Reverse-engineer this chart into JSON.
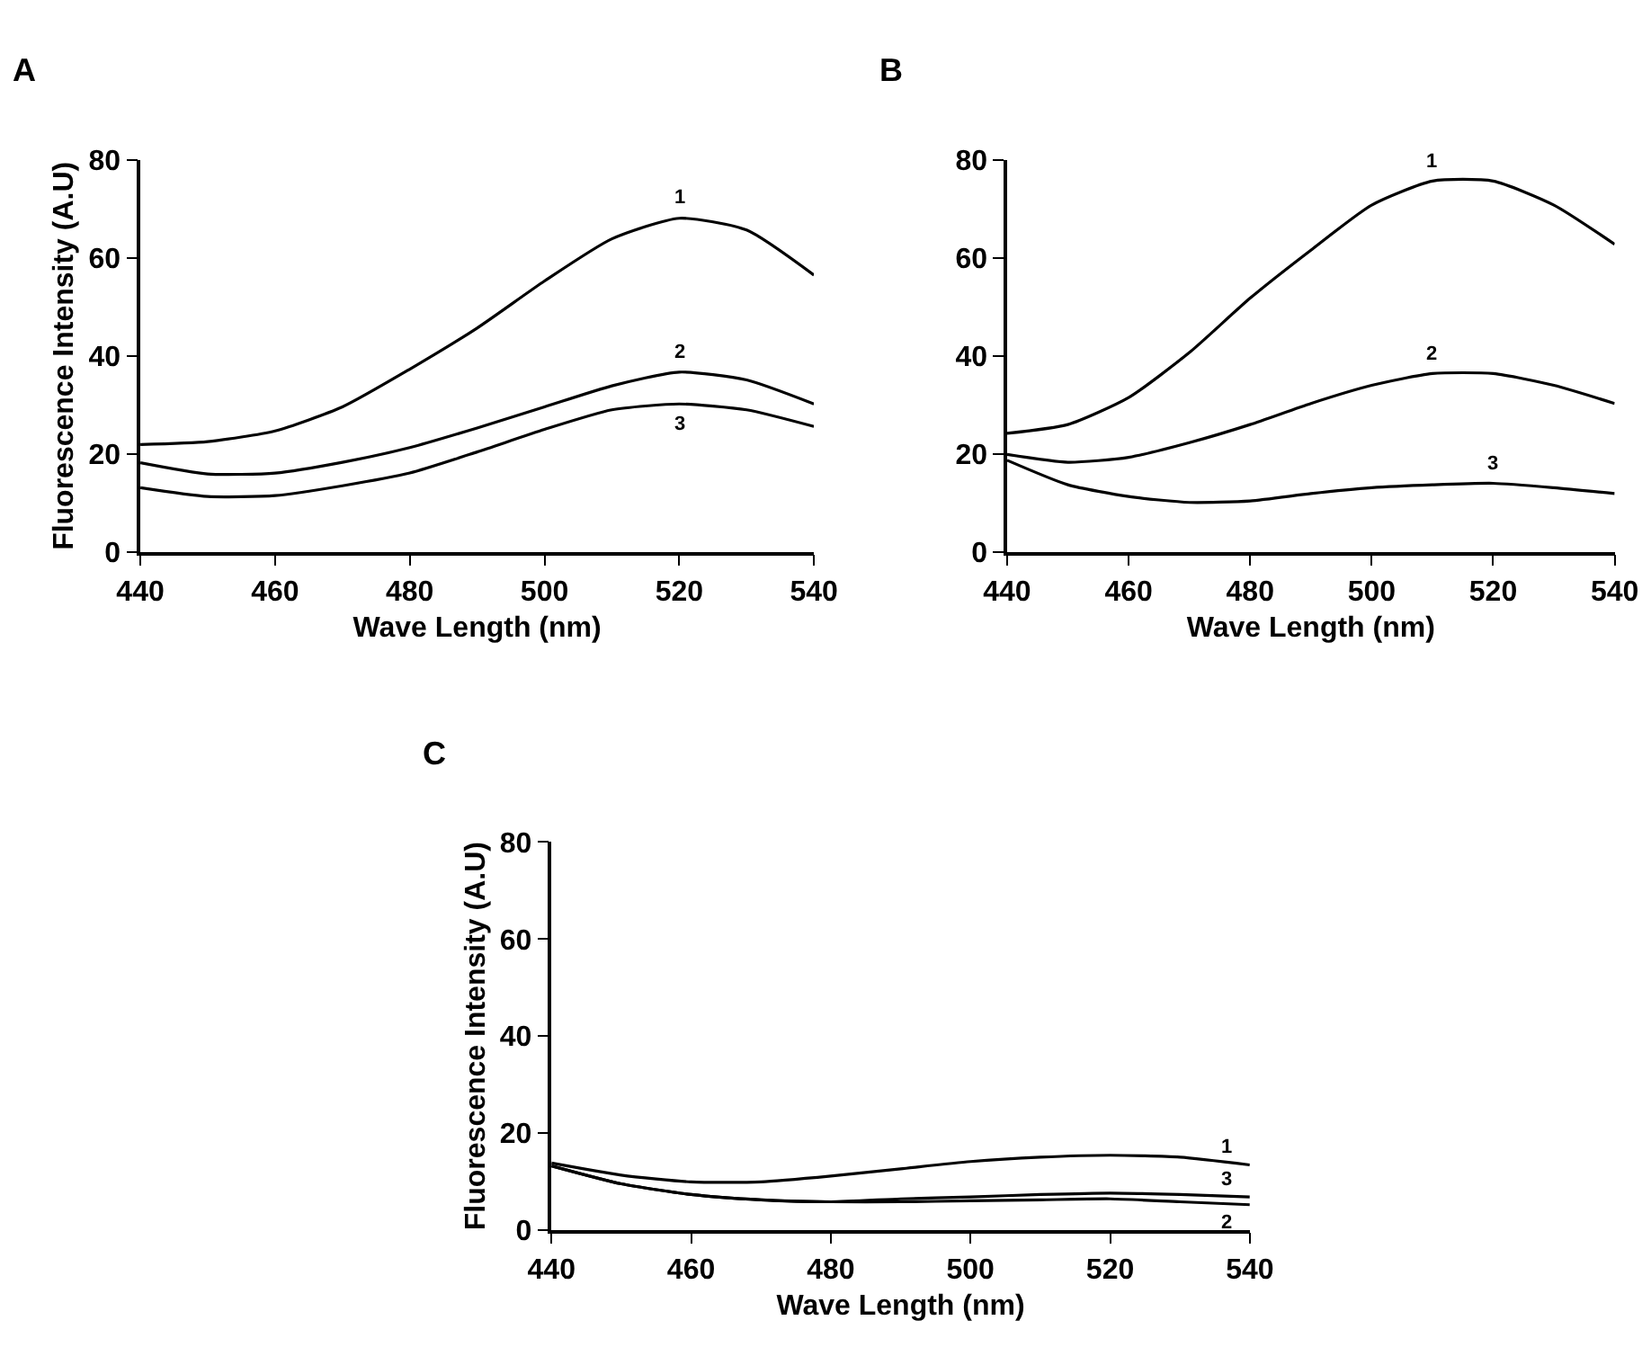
{
  "chart_data": [
    {
      "type": "line",
      "title": "A",
      "xlabel": "Wave Length (nm)",
      "ylabel": "Fluorescence Intensity (A.U)",
      "x": [
        440,
        450,
        460,
        470,
        480,
        490,
        500,
        510,
        520,
        530,
        540
      ],
      "xlim": [
        440,
        540
      ],
      "xticks": [
        440,
        460,
        480,
        500,
        520,
        540
      ],
      "ylim": [
        0,
        80
      ],
      "yticks": [
        0,
        20,
        40,
        60,
        80
      ],
      "grid": false,
      "legend": false,
      "marker": "none",
      "line_style": "solid",
      "series": [
        {
          "name": "1",
          "color": "#000000",
          "values": [
            21.9,
            22.5,
            24.7,
            29.6,
            37.3,
            45.7,
            55.3,
            63.9,
            68.1,
            65.7,
            56.5
          ]
        },
        {
          "name": "2",
          "color": "#000000",
          "values": [
            18.2,
            15.9,
            16.1,
            18.3,
            21.3,
            25.3,
            29.6,
            33.9,
            36.7,
            35.1,
            30.2
          ]
        },
        {
          "name": "3",
          "color": "#000000",
          "values": [
            13.1,
            11.3,
            11.5,
            13.5,
            16.1,
            20.4,
            25.0,
            29.0,
            30.2,
            29.0,
            25.6
          ]
        }
      ]
    },
    {
      "type": "line",
      "title": "B",
      "xlabel": "Wave Length (nm)",
      "x": [
        440,
        450,
        460,
        470,
        480,
        490,
        500,
        510,
        520,
        530,
        540
      ],
      "xlim": [
        440,
        540
      ],
      "xticks": [
        {
          "value": 440,
          "label": "440"
        },
        {
          "value": 460,
          "label": "460"
        },
        {
          "value": 480,
          "label": "480"
        },
        {
          "value": 500,
          "label": "500"
        },
        {
          "value": 520,
          "label": "520"
        },
        {
          "value": 540,
          "label": "540"
        }
      ],
      "ylim": [
        0,
        80
      ],
      "yticks": [
        0,
        20,
        40,
        60,
        80
      ],
      "grid": false,
      "legend": false,
      "marker": "none",
      "line_style": "solid",
      "series": [
        {
          "name": "1",
          "color": "#000000",
          "values": [
            24.2,
            26.0,
            31.5,
            40.7,
            51.8,
            61.6,
            70.8,
            75.7,
            75.7,
            70.8,
            62.8
          ]
        },
        {
          "name": "2",
          "color": "#000000",
          "values": [
            19.9,
            18.3,
            19.3,
            22.3,
            26.0,
            30.3,
            34.0,
            36.4,
            36.4,
            34.0,
            30.3
          ]
        },
        {
          "name": "3",
          "color": "#000000",
          "values": [
            18.7,
            13.7,
            11.3,
            10.1,
            10.4,
            11.9,
            13.1,
            13.7,
            14.0,
            13.1,
            11.9
          ]
        }
      ]
    },
    {
      "type": "line",
      "title": "C",
      "xlabel": "Wave Length (nm)",
      "ylabel": "Fluorescence Intensity (A.U)",
      "x": [
        440,
        450,
        460,
        470,
        480,
        490,
        500,
        510,
        520,
        530,
        540
      ],
      "xlim": [
        440,
        540
      ],
      "xticks": [
        440,
        460,
        480,
        500,
        520,
        540
      ],
      "ylim": [
        0,
        80
      ],
      "yticks": [
        0,
        20,
        40,
        60,
        80
      ],
      "grid": false,
      "legend": false,
      "marker": "none",
      "line_style": "solid",
      "series": [
        {
          "name": "1",
          "color": "#000000",
          "values": [
            13.8,
            11.3,
            9.9,
            9.9,
            11.1,
            12.6,
            14.1,
            15.0,
            15.4,
            15.0,
            13.4
          ]
        },
        {
          "name": "2",
          "color": "#000000",
          "values": [
            13.2,
            9.5,
            7.3,
            6.2,
            5.8,
            5.8,
            6.0,
            6.2,
            6.4,
            5.8,
            5.2
          ]
        },
        {
          "name": "3",
          "color": "#000000",
          "values": [
            13.2,
            9.5,
            7.3,
            6.2,
            5.8,
            6.4,
            6.8,
            7.3,
            7.6,
            7.3,
            6.8
          ]
        }
      ]
    }
  ]
}
